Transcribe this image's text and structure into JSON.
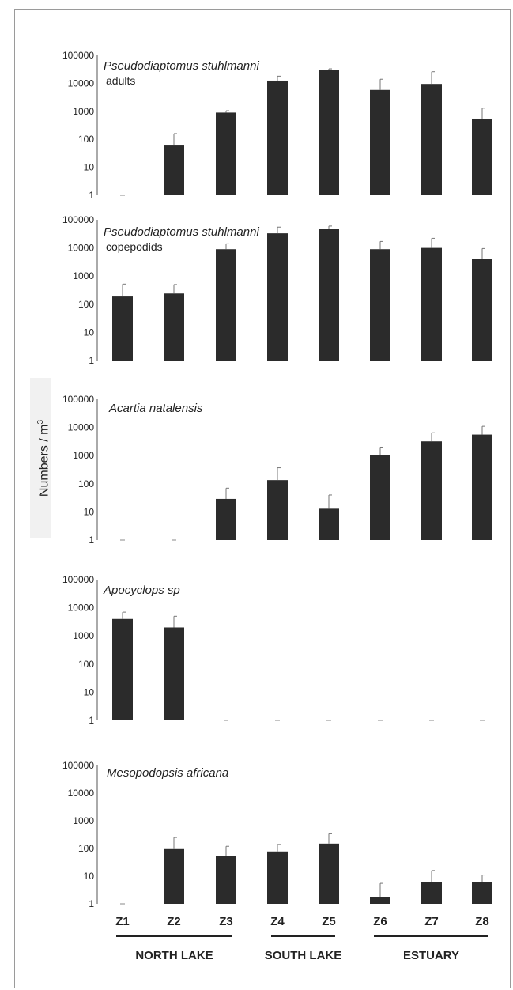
{
  "y_axis_label": "Numbers / m",
  "y_axis_label_sup": "3",
  "chart_data": [
    {
      "type": "bar",
      "title": "Pseudodiaptomus stuhlmanni",
      "subtitle": "adults",
      "y_scale": "log",
      "ylim": [
        1,
        100000
      ],
      "y_ticks": [
        "1",
        "10",
        "100",
        "1000",
        "10000",
        "100000"
      ],
      "categories": [
        "Z1",
        "Z2",
        "Z3",
        "Z4",
        "Z5",
        "Z6",
        "Z7",
        "Z8"
      ],
      "values": [
        0,
        60,
        900,
        12500,
        30000,
        5800,
        9500,
        550
      ],
      "error_upper": [
        null,
        160,
        1050,
        18000,
        33000,
        14000,
        26000,
        1300
      ],
      "bar_color": "#2b2b2b"
    },
    {
      "type": "bar",
      "title": "Pseudodiaptomus stuhlmanni",
      "subtitle": "copepodids",
      "y_scale": "log",
      "ylim": [
        1,
        100000
      ],
      "y_ticks": [
        "1",
        "10",
        "100",
        "1000",
        "10000",
        "100000"
      ],
      "categories": [
        "Z1",
        "Z2",
        "Z3",
        "Z4",
        "Z5",
        "Z6",
        "Z7",
        "Z8"
      ],
      "values": [
        200,
        240,
        9000,
        33000,
        48000,
        9000,
        10000,
        4000
      ],
      "error_upper": [
        520,
        500,
        14000,
        55000,
        60000,
        17000,
        22000,
        9500
      ],
      "bar_color": "#2b2b2b"
    },
    {
      "type": "bar",
      "title": "Acartia natalensis",
      "subtitle": "",
      "y_scale": "log",
      "ylim": [
        1,
        100000
      ],
      "y_ticks": [
        "1",
        "10",
        "100",
        "1000",
        "10000",
        "100000"
      ],
      "categories": [
        "Z1",
        "Z2",
        "Z3",
        "Z4",
        "Z5",
        "Z6",
        "Z7",
        "Z8"
      ],
      "values": [
        0,
        0,
        29,
        135,
        13,
        1050,
        3200,
        5600
      ],
      "error_upper": [
        null,
        null,
        70,
        370,
        40,
        2000,
        6500,
        11000
      ],
      "bar_color": "#2b2b2b"
    },
    {
      "type": "bar",
      "title": "Apocyclops sp",
      "subtitle": "",
      "y_scale": "log",
      "ylim": [
        1,
        100000
      ],
      "y_ticks": [
        "1",
        "10",
        "100",
        "1000",
        "10000",
        "100000"
      ],
      "categories": [
        "Z1",
        "Z2",
        "Z3",
        "Z4",
        "Z5",
        "Z6",
        "Z7",
        "Z8"
      ],
      "values": [
        4000,
        2000,
        0,
        0,
        0,
        0,
        0,
        0
      ],
      "error_upper": [
        7000,
        5000,
        null,
        null,
        null,
        null,
        null,
        null
      ],
      "bar_color": "#2b2b2b"
    },
    {
      "type": "bar",
      "title": "Mesopodopsis africana",
      "subtitle": "",
      "y_scale": "log",
      "ylim": [
        1,
        100000
      ],
      "y_ticks": [
        "1",
        "10",
        "100",
        "1000",
        "10000",
        "100000"
      ],
      "categories": [
        "Z1",
        "Z2",
        "Z3",
        "Z4",
        "Z5",
        "Z6",
        "Z7",
        "Z8"
      ],
      "values": [
        0,
        95,
        52,
        78,
        150,
        1.75,
        6,
        6
      ],
      "error_upper": [
        null,
        250,
        120,
        140,
        340,
        5.5,
        16,
        11
      ],
      "bar_color": "#2b2b2b"
    }
  ],
  "x_tick_labels": [
    "Z1",
    "Z2",
    "Z3",
    "Z4",
    "Z5",
    "Z6",
    "Z7",
    "Z8"
  ],
  "groups": [
    {
      "label": "NORTH LAKE",
      "from": 0,
      "to": 2
    },
    {
      "label": "SOUTH LAKE",
      "from": 3,
      "to": 4
    },
    {
      "label": "ESTUARY",
      "from": 5,
      "to": 7
    }
  ]
}
